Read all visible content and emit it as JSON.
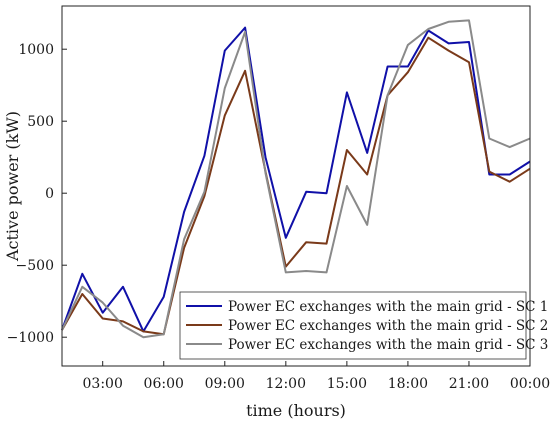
{
  "chart_data": {
    "type": "line",
    "title": "",
    "xlabel": "time (hours)",
    "ylabel": "Active power (kW)",
    "x": [
      1,
      2,
      3,
      4,
      5,
      6,
      7,
      8,
      9,
      10,
      11,
      12,
      13,
      14,
      15,
      16,
      17,
      18,
      19,
      20,
      21,
      22,
      23,
      24
    ],
    "xlim": [
      1,
      24
    ],
    "xticks": [
      3,
      6,
      9,
      12,
      15,
      18,
      21,
      24
    ],
    "xtick_labels": [
      "03:00",
      "06:00",
      "09:00",
      "12:00",
      "15:00",
      "18:00",
      "21:00",
      "00:00"
    ],
    "ylim": [
      -1200,
      1300
    ],
    "yticks": [
      -1000,
      -500,
      0,
      500,
      1000
    ],
    "ytick_labels": [
      "−1000",
      "−500",
      "0",
      "500",
      "1000"
    ],
    "grid": false,
    "legend_position": "bottom-right",
    "series": [
      {
        "name": "Power EC exchanges with the main grid - SC 1",
        "color": "#1010a8",
        "values": [
          -950,
          -560,
          -830,
          -650,
          -960,
          -720,
          -130,
          260,
          990,
          1150,
          250,
          -310,
          10,
          0,
          700,
          280,
          880,
          880,
          1130,
          1040,
          1050,
          130,
          130,
          220
        ]
      },
      {
        "name": "Power EC exchanges with the main grid - SC 2",
        "color": "#7a3a1a",
        "values": [
          -950,
          -700,
          -870,
          -890,
          -960,
          -980,
          -380,
          -20,
          540,
          850,
          150,
          -510,
          -340,
          -350,
          300,
          130,
          680,
          840,
          1080,
          990,
          910,
          150,
          80,
          170
        ]
      },
      {
        "name": "Power EC exchanges with the main grid - SC 3",
        "color": "#8a8a8a",
        "values": [
          -950,
          -650,
          -760,
          -920,
          -1000,
          -980,
          -320,
          10,
          730,
          1120,
          140,
          -550,
          -540,
          -550,
          50,
          -220,
          680,
          1030,
          1140,
          1190,
          1200,
          380,
          320,
          380
        ]
      }
    ]
  }
}
